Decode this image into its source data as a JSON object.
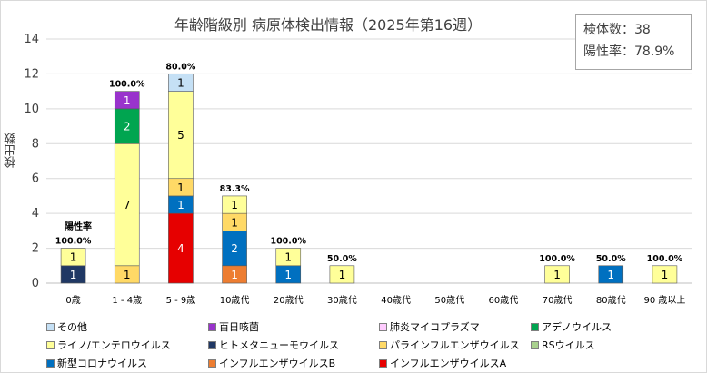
{
  "chart_data": {
    "type": "bar",
    "stacked": true,
    "title": "年齢階級別 病原体検出情報（2025年第16週）",
    "ylabel": "検出数",
    "ylim": [
      0,
      14
    ],
    "yticks": [
      0,
      2,
      4,
      6,
      8,
      10,
      12,
      14
    ],
    "grid": true,
    "legend_position": "bottom",
    "positivity_title": "陽性率",
    "categories": [
      "0歳",
      "1 - 4歳",
      "5 - 9歳",
      "10歳代",
      "20歳代",
      "30歳代",
      "40歳代",
      "50歳代",
      "60歳代",
      "70歳代",
      "80歳代",
      "90 歳以上"
    ],
    "positivity": [
      "100.0%",
      "100.0%",
      "80.0%",
      "83.3%",
      "100.0%",
      "50.0%",
      "",
      "",
      "",
      "100.0%",
      "50.0%",
      "100.0%"
    ],
    "series": [
      {
        "name": "インフルエンザウイルスA",
        "color": "#e60000",
        "values": [
          0,
          0,
          4,
          0,
          0,
          0,
          0,
          0,
          0,
          0,
          0,
          0
        ]
      },
      {
        "name": "インフルエンザウイルスB",
        "color": "#ed7d31",
        "values": [
          0,
          0,
          0,
          1,
          0,
          0,
          0,
          0,
          0,
          0,
          0,
          0
        ]
      },
      {
        "name": "新型コロナウイルス",
        "color": "#0070c0",
        "values": [
          0,
          0,
          1,
          2,
          1,
          0,
          0,
          0,
          0,
          0,
          1,
          0
        ]
      },
      {
        "name": "RSウイルス",
        "color": "#a9d18e",
        "values": [
          0,
          0,
          0,
          0,
          0,
          0,
          0,
          0,
          0,
          0,
          0,
          0
        ]
      },
      {
        "name": "パラインフルエンザウイルス",
        "color": "#ffd966",
        "values": [
          0,
          1,
          1,
          1,
          0,
          0,
          0,
          0,
          0,
          0,
          0,
          0
        ]
      },
      {
        "name": "ヒトメタニューモウイルス",
        "color": "#203864",
        "values": [
          1,
          0,
          0,
          0,
          0,
          0,
          0,
          0,
          0,
          0,
          0,
          0
        ]
      },
      {
        "name": "ライノ/エンテロウイルス",
        "color": "#ffff99",
        "values": [
          1,
          7,
          5,
          1,
          1,
          1,
          0,
          0,
          0,
          1,
          0,
          1
        ]
      },
      {
        "name": "アデノウイルス",
        "color": "#00a550",
        "values": [
          0,
          2,
          0,
          0,
          0,
          0,
          0,
          0,
          0,
          0,
          0,
          0
        ]
      },
      {
        "name": "肺炎マイコプラズマ",
        "color": "#ffccff",
        "values": [
          0,
          0,
          0,
          0,
          0,
          0,
          0,
          0,
          0,
          0,
          0,
          0
        ]
      },
      {
        "name": "百日咳菌",
        "color": "#9933cc",
        "values": [
          0,
          1,
          0,
          0,
          0,
          0,
          0,
          0,
          0,
          0,
          0,
          0
        ]
      },
      {
        "name": "その他",
        "color": "#c5e0f5",
        "values": [
          0,
          0,
          1,
          0,
          0,
          0,
          0,
          0,
          0,
          0,
          0,
          0
        ]
      }
    ],
    "legend_order": [
      "その他",
      "百日咳菌",
      "肺炎マイコプラズマ",
      "アデノウイルス",
      "ライノ/エンテロウイルス",
      "ヒトメタニューモウイルス",
      "パラインフルエンザウイルス",
      "RSウイルス",
      "新型コロナウイルス",
      "インフルエンザウイルスB",
      "インフルエンザウイルスA"
    ]
  },
  "stats": {
    "total_label": "検体数：",
    "total_value": "38",
    "rate_label": "陽性率：",
    "rate_value": "78.9%"
  }
}
